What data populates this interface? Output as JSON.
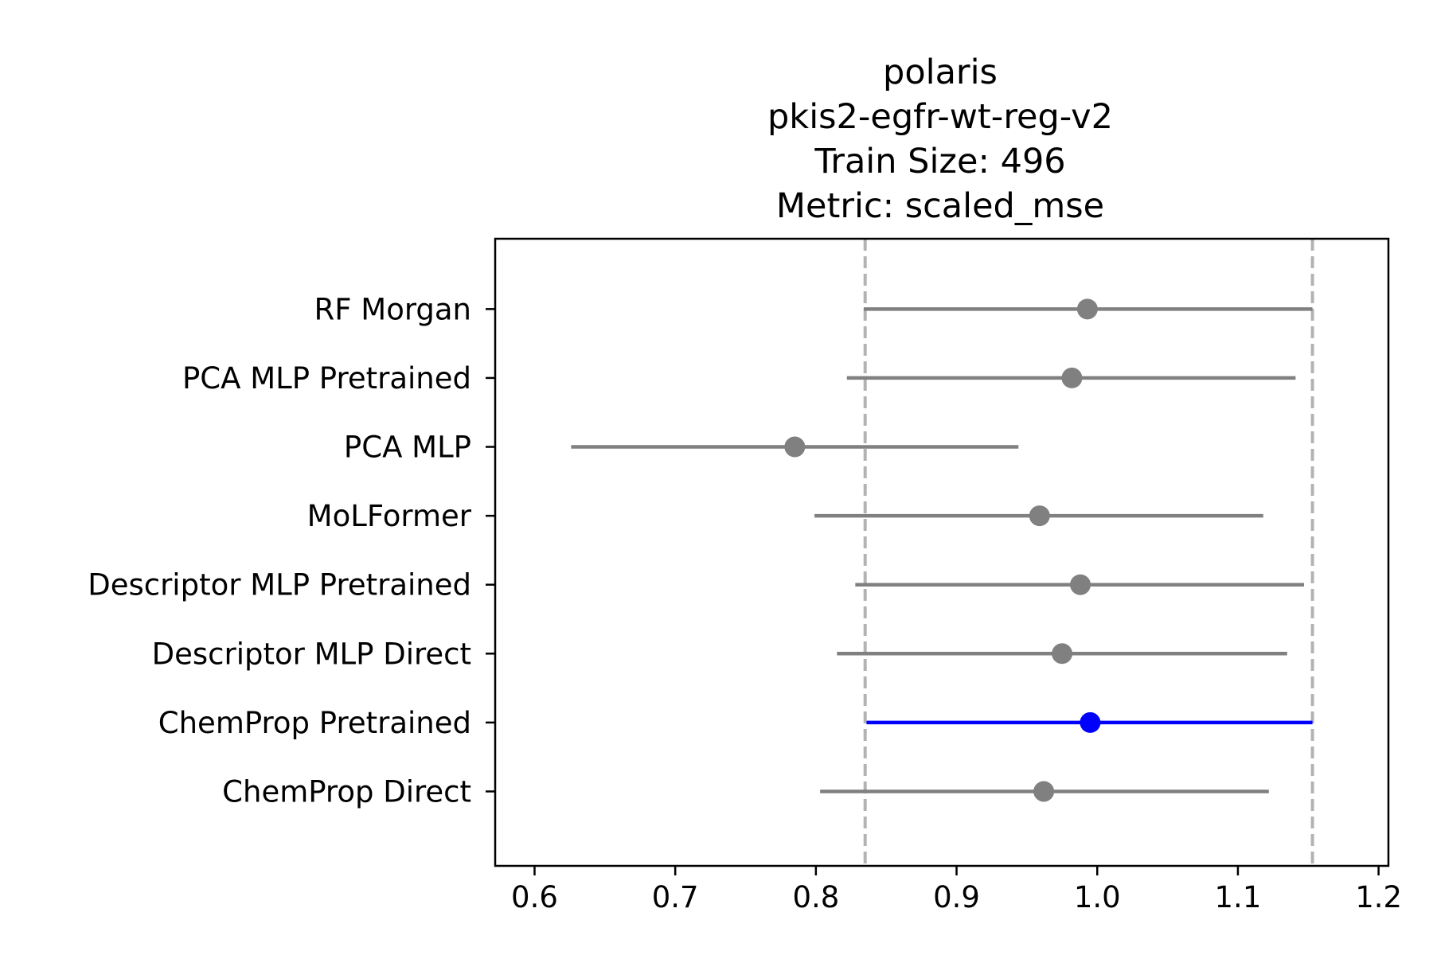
{
  "chart_data": {
    "type": "scatter",
    "title_lines": [
      "polaris",
      "pkis2-egfr-wt-reg-v2",
      "Train Size: 496",
      "Metric: scaled_mse"
    ],
    "xlabel": "",
    "ylabel": "",
    "xlim": [
      0.572,
      1.207
    ],
    "xticks": [
      0.6,
      0.7,
      0.8,
      0.9,
      1.0,
      1.1,
      1.2
    ],
    "xtick_labels": [
      "0.6",
      "0.7",
      "0.8",
      "0.9",
      "1.0",
      "1.1",
      "1.2"
    ],
    "reference_lines": [
      0.835,
      1.153
    ],
    "reference_line_color": "#b3b3b3",
    "default_color": "#808080",
    "highlight_color": "#0000ff",
    "points": [
      {
        "label": "RF Morgan",
        "value": 0.993,
        "ci": [
          0.834,
          1.153
        ],
        "highlight": false
      },
      {
        "label": "PCA MLP Pretrained",
        "value": 0.982,
        "ci": [
          0.822,
          1.141
        ],
        "highlight": false
      },
      {
        "label": "PCA MLP",
        "value": 0.785,
        "ci": [
          0.626,
          0.944
        ],
        "highlight": false
      },
      {
        "label": "MoLFormer",
        "value": 0.959,
        "ci": [
          0.799,
          1.118
        ],
        "highlight": false
      },
      {
        "label": "Descriptor MLP Pretrained",
        "value": 0.988,
        "ci": [
          0.828,
          1.147
        ],
        "highlight": false
      },
      {
        "label": "Descriptor MLP Direct",
        "value": 0.975,
        "ci": [
          0.815,
          1.135
        ],
        "highlight": false
      },
      {
        "label": "ChemProp Pretrained",
        "value": 0.995,
        "ci": [
          0.836,
          1.153
        ],
        "highlight": true
      },
      {
        "label": "ChemProp Direct",
        "value": 0.962,
        "ci": [
          0.803,
          1.122
        ],
        "highlight": false
      }
    ]
  }
}
